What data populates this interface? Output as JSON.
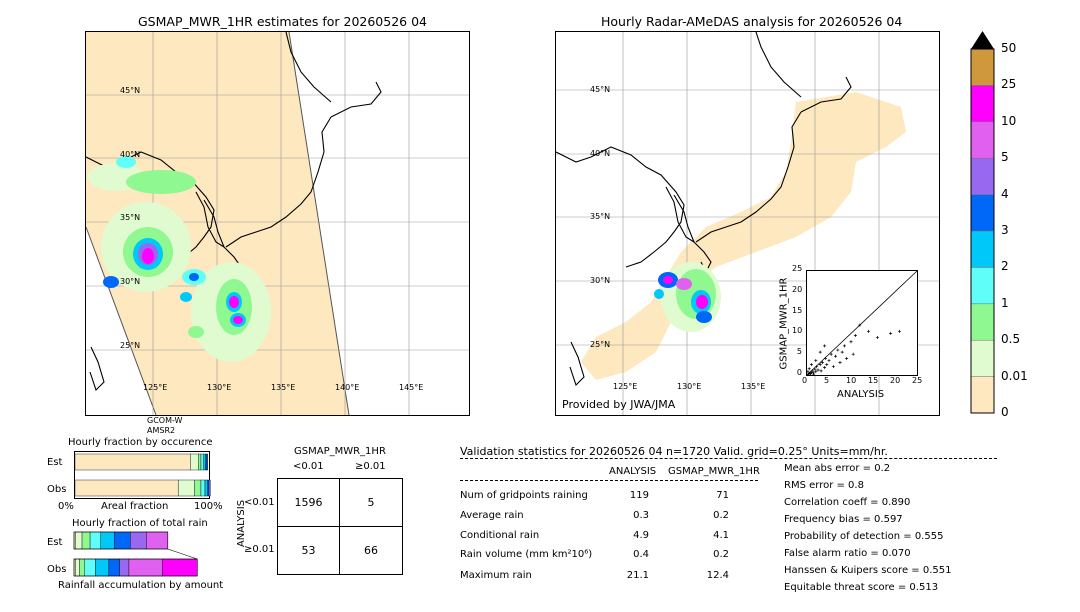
{
  "left_map": {
    "title": "GSMAP_MWR_1HR estimates for 20260526 04",
    "lat_labels": [
      "45°N",
      "40°N",
      "35°N",
      "30°N",
      "25°N"
    ],
    "lon_labels": [
      "125°E",
      "130°E",
      "135°E",
      "140°E",
      "145°E"
    ],
    "satellite_labels": [
      "GCOM-W",
      "AMSR2"
    ]
  },
  "right_map": {
    "title": "Hourly Radar-AMeDAS analysis for 20260526 04",
    "lat_labels": [
      "45°N",
      "40°N",
      "35°N",
      "30°N",
      "25°N"
    ],
    "lon_labels": [
      "125°E",
      "130°E",
      "135°E"
    ],
    "credit": "Provided by JWA/JMA"
  },
  "colorbar": {
    "levels": [
      "0",
      "0.01",
      "0.5",
      "1",
      "2",
      "3",
      "4",
      "5",
      "10",
      "25",
      "50"
    ],
    "colors": [
      "#fde8c0",
      "#e0fbd0",
      "#90f890",
      "#60fef8",
      "#00c8f8",
      "#0068f8",
      "#9868f0",
      "#e060f0",
      "#ff00ff",
      "#d0983c"
    ],
    "top_color": "#000000"
  },
  "chart_data": [
    {
      "type": "scatter",
      "title": "",
      "xlabel": "ANALYSIS",
      "ylabel": "GSMAP_MWR_1HR",
      "xlim": [
        0,
        25
      ],
      "ylim": [
        0,
        25
      ],
      "xticks": [
        "0",
        "5",
        "10",
        "15",
        "20",
        "25"
      ],
      "yticks": [
        "0",
        "5",
        "10",
        "15",
        "20",
        "25"
      ],
      "points": [
        [
          0.3,
          0.2
        ],
        [
          0.5,
          0.4
        ],
        [
          0.8,
          0.3
        ],
        [
          1.0,
          0.6
        ],
        [
          1.2,
          1.0
        ],
        [
          1.5,
          0.5
        ],
        [
          1.8,
          1.4
        ],
        [
          2.0,
          0.8
        ],
        [
          2.2,
          2.0
        ],
        [
          2.5,
          1.2
        ],
        [
          3.0,
          2.5
        ],
        [
          3.2,
          1.0
        ],
        [
          3.5,
          3.0
        ],
        [
          4.0,
          1.8
        ],
        [
          4.2,
          4.0
        ],
        [
          4.5,
          2.5
        ],
        [
          5.0,
          3.5
        ],
        [
          5.5,
          5.0
        ],
        [
          6.0,
          2.0
        ],
        [
          6.5,
          4.5
        ],
        [
          7.0,
          6.0
        ],
        [
          7.5,
          3.0
        ],
        [
          8.0,
          5.5
        ],
        [
          8.5,
          7.0
        ],
        [
          9.0,
          4.0
        ],
        [
          10.0,
          8.0
        ],
        [
          10.5,
          5.0
        ],
        [
          11.0,
          9.5
        ],
        [
          12.0,
          12.0
        ],
        [
          14.0,
          10.5
        ],
        [
          16.0,
          9.0
        ],
        [
          19.0,
          10.0
        ],
        [
          21.0,
          10.5
        ],
        [
          0.5,
          1.5
        ],
        [
          1.0,
          2.5
        ],
        [
          2.0,
          3.5
        ],
        [
          3.0,
          5.5
        ],
        [
          4.0,
          7.0
        ],
        [
          0.2,
          0.8
        ],
        [
          1.5,
          0.2
        ]
      ],
      "diagonal": true
    },
    {
      "type": "bar",
      "title": "Hourly fraction by occurence",
      "categories": [
        "Est",
        "Obs"
      ],
      "xlabel": "Areal fraction",
      "xticks": [
        "0%",
        "100%"
      ],
      "series_colors": [
        "#fde8c0",
        "#e0fbd0",
        "#90f890",
        "#60fef8",
        "#00c8f8",
        "#0068f8",
        "#9868f0"
      ],
      "stacks": [
        [
          0.86,
          0.06,
          0.02,
          0.02,
          0.015,
          0.01,
          0.005
        ],
        [
          0.77,
          0.12,
          0.05,
          0.03,
          0.02,
          0.01,
          0.01
        ]
      ]
    },
    {
      "type": "bar",
      "title": "Hourly fraction of total rain",
      "categories": [
        "Est",
        "Obs"
      ],
      "xlabel": "Rainfall accumulation by amount",
      "series_colors": [
        "#fde8c0",
        "#e0fbd0",
        "#90f890",
        "#60fef8",
        "#00c8f8",
        "#0068f8",
        "#9868f0",
        "#e060f0",
        "#ff00ff"
      ],
      "stacks": [
        [
          0.01,
          0.05,
          0.06,
          0.08,
          0.1,
          0.12,
          0.12,
          0.16,
          0.0
        ],
        [
          0.01,
          0.03,
          0.04,
          0.08,
          0.1,
          0.08,
          0.07,
          0.25,
          0.26
        ]
      ]
    },
    {
      "type": "table",
      "title": "GSMAP_MWR_1HR",
      "col_headers": [
        "<0.01",
        "≥0.01"
      ],
      "row_headers": [
        "<0.01",
        "≥0.01"
      ],
      "row_axis_label": "ANALYSIS",
      "cells": [
        [
          "1596",
          "5"
        ],
        [
          "53",
          "66"
        ]
      ]
    }
  ],
  "validation": {
    "header": "Validation statistics for 20260526 04  n=1720 Valid. grid=0.25° Units=mm/hr.",
    "col_analysis": "ANALYSIS",
    "col_gsmap": "GSMAP_MWR_1HR",
    "rows": [
      {
        "label": "Num of gridpoints raining",
        "a": "119",
        "g": "71"
      },
      {
        "label": "Average rain",
        "a": "0.3",
        "g": "0.2"
      },
      {
        "label": "Conditional rain",
        "a": "4.9",
        "g": "4.1"
      },
      {
        "label": "Rain volume (mm km²10⁶)",
        "a": "0.4",
        "g": "0.2"
      },
      {
        "label": "Maximum rain",
        "a": "21.1",
        "g": "12.4"
      }
    ],
    "scores": [
      "Mean abs error =    0.2",
      "RMS error =    0.8",
      "Correlation coeff =  0.890",
      "Frequency bias =  0.597",
      "Probability of detection =  0.555",
      "False alarm ratio =  0.070",
      "Hanssen & Kuipers score =  0.551",
      "Equitable threat score =  0.513"
    ]
  }
}
